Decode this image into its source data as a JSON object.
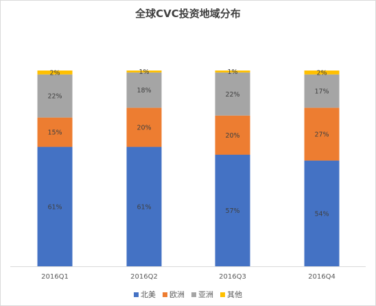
{
  "chart_data": {
    "type": "bar",
    "stacked": true,
    "title": "全球CVC投资地域分布",
    "categories": [
      "2016Q1",
      "2016Q2",
      "2016Q3",
      "2016Q4"
    ],
    "series": [
      {
        "name": "北美",
        "color": "#4472c4",
        "values": [
          61,
          61,
          57,
          54
        ],
        "labels": [
          "61%",
          "61%",
          "57%",
          "54%"
        ]
      },
      {
        "name": "欧洲",
        "color": "#ed7d31",
        "values": [
          15,
          20,
          20,
          27
        ],
        "labels": [
          "15%",
          "20%",
          "20%",
          "27%"
        ]
      },
      {
        "name": "亚洲",
        "color": "#a5a5a5",
        "values": [
          22,
          18,
          22,
          17
        ],
        "labels": [
          "22%",
          "18%",
          "22%",
          "17%"
        ]
      },
      {
        "name": "其他",
        "color": "#ffc000",
        "values": [
          2,
          1,
          1,
          2
        ],
        "labels": [
          "2%",
          "1%",
          "1%",
          "2%"
        ]
      }
    ],
    "ylim": [
      0,
      100
    ],
    "grid": false,
    "legend": "bottom"
  }
}
